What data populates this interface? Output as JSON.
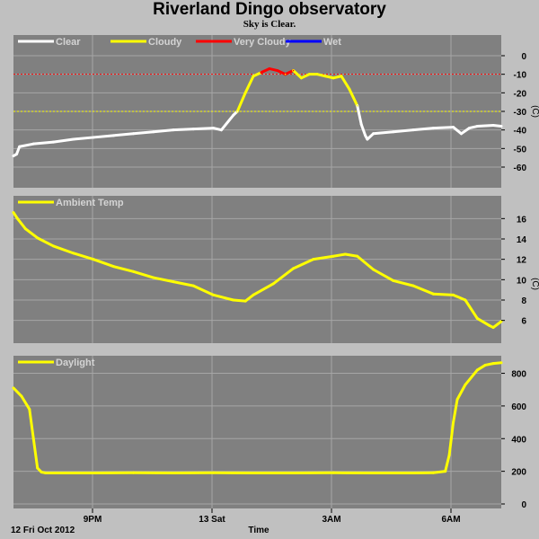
{
  "title": "Riverland Dingo observatory",
  "subtitle": "Sky is Clear.",
  "x_axis": {
    "date_label": "12 Fri Oct 2012",
    "label": "Time",
    "ticks": [
      "9PM",
      "13 Sat",
      "3AM",
      "6AM"
    ]
  },
  "colors": {
    "background": "#c0c0c0",
    "panel": "#808080",
    "grid": "#a6a6a6",
    "clear": "#ffffff",
    "cloudy": "#ffff00",
    "very_cloudy": "#ff0000",
    "wet": "#0000ff"
  },
  "chart_data": [
    {
      "type": "line",
      "name": "sky",
      "legend": [
        "Clear",
        "Cloudy",
        "Very Cloudy",
        "Wet"
      ],
      "ylabel": "(C)",
      "yticks": [
        0,
        -10,
        -20,
        -30,
        -40,
        -50,
        -60
      ],
      "ylim": [
        -60,
        0
      ],
      "thresholds": [
        -10,
        -30
      ],
      "x_hours": [
        0,
        0.08,
        0.15,
        0.5,
        1,
        1.5,
        2,
        2.5,
        3,
        3.5,
        4,
        4.5,
        5,
        5.2,
        5.5,
        5.6,
        5.8,
        6,
        6.2,
        6.4,
        6.6,
        6.8,
        7,
        7.2,
        7.4,
        7.6,
        7.8,
        8,
        8.2,
        8.4,
        8.6,
        8.7,
        8.8,
        8.85,
        9,
        9.5,
        10,
        10.5,
        11,
        11.2,
        11.4,
        11.6,
        12,
        12.2
      ],
      "values": [
        -54,
        -53,
        -49,
        -47.5,
        -46.5,
        -45,
        -44,
        -43,
        -42,
        -41,
        -40,
        -39.5,
        -39,
        -40,
        -32,
        -30,
        -20,
        -11,
        -9,
        -7,
        -8,
        -10,
        -8,
        -12,
        -10,
        -10,
        -11,
        -12,
        -11,
        -18,
        -27,
        -37,
        -43,
        -45,
        -42,
        -41,
        -40,
        -39,
        -38.5,
        -42,
        -39,
        -38,
        -37.5,
        -38
      ]
    },
    {
      "type": "line",
      "name": "ambient",
      "legend": [
        "Ambient Temp"
      ],
      "ylabel": "(C)",
      "yticks": [
        16,
        14,
        12,
        10,
        8,
        6
      ],
      "ylim": [
        5,
        17
      ],
      "x_hours": [
        0,
        0.1,
        0.3,
        0.6,
        1,
        1.5,
        2,
        2.5,
        3,
        3.5,
        4,
        4.5,
        5,
        5.5,
        5.8,
        6,
        6.5,
        7,
        7.5,
        8,
        8.3,
        8.6,
        9,
        9.5,
        10,
        10.5,
        11,
        11.3,
        11.6,
        11.9,
        12,
        12.2
      ],
      "values": [
        16.6,
        16,
        15,
        14.1,
        13.3,
        12.6,
        12,
        11.3,
        10.8,
        10.2,
        9.8,
        9.4,
        8.5,
        8,
        7.9,
        8.5,
        9.6,
        11.1,
        12,
        12.3,
        12.5,
        12.3,
        11,
        9.9,
        9.4,
        8.6,
        8.5,
        8,
        6.2,
        5.5,
        5.3,
        5.9
      ]
    },
    {
      "type": "line",
      "name": "daylight",
      "legend": [
        "Daylight"
      ],
      "yticks": [
        800,
        600,
        400,
        200,
        0
      ],
      "ylim": [
        0,
        880
      ],
      "x_hours": [
        0,
        0.2,
        0.4,
        0.5,
        0.6,
        0.7,
        0.8,
        1,
        2,
        3,
        4,
        5,
        6,
        7,
        8,
        9,
        10,
        10.5,
        10.8,
        10.9,
        11,
        11.1,
        11.3,
        11.6,
        11.8,
        12,
        12.2
      ],
      "values": [
        710,
        660,
        580,
        400,
        220,
        195,
        190,
        190,
        190,
        191,
        190,
        191,
        190,
        190,
        191,
        190,
        190,
        191,
        200,
        300,
        500,
        640,
        730,
        820,
        850,
        860,
        865
      ]
    }
  ]
}
